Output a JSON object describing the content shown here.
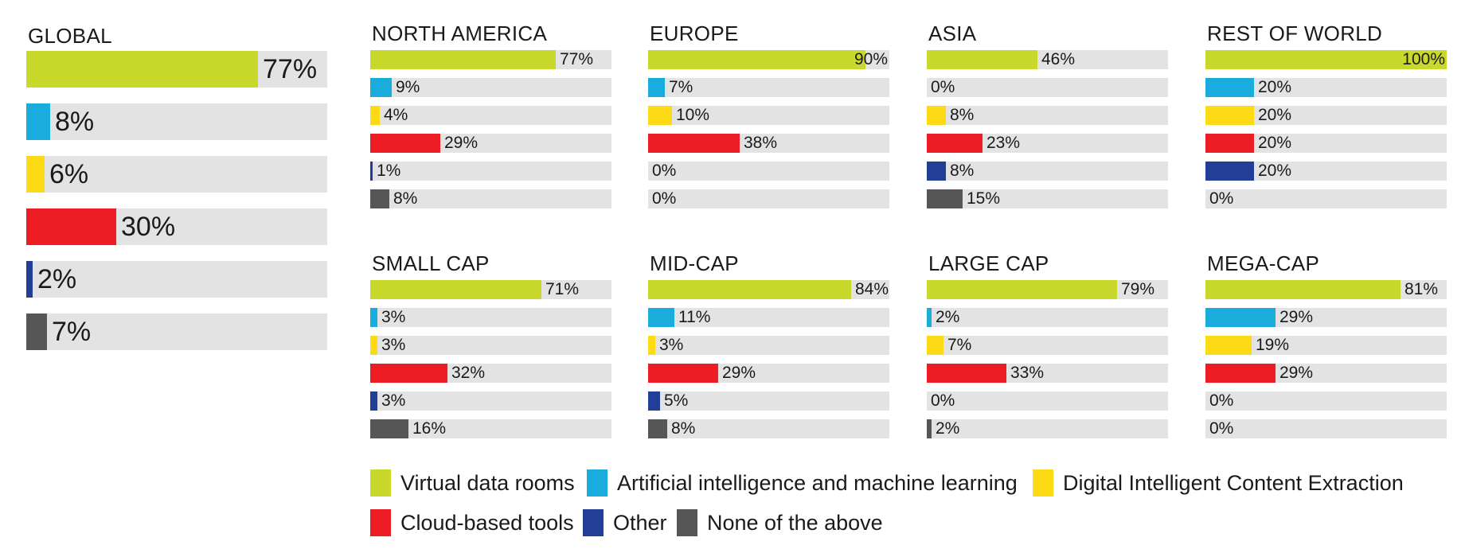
{
  "categories": [
    "Virtual data rooms",
    "Artificial intelligence and machine learning",
    "Digital Intelligent Content Extraction",
    "Cloud-based tools",
    "Other",
    "None of the above"
  ],
  "colors": [
    "#c8d92b",
    "#19acdd",
    "#fcdb16",
    "#ec1d25",
    "#233e97",
    "#565657"
  ],
  "track_color": "#e3e3e4",
  "chart_data": [
    {
      "type": "bar",
      "title": "GLOBAL",
      "values": [
        77,
        8,
        6,
        30,
        2,
        7
      ],
      "xlim": [
        0,
        100
      ],
      "unit": "%"
    },
    {
      "type": "bar",
      "title": "NORTH AMERICA",
      "values": [
        77,
        9,
        4,
        29,
        1,
        8
      ],
      "xlim": [
        0,
        100
      ],
      "unit": "%"
    },
    {
      "type": "bar",
      "title": "EUROPE",
      "values": [
        90,
        7,
        10,
        38,
        0,
        0
      ],
      "xlim": [
        0,
        100
      ],
      "unit": "%"
    },
    {
      "type": "bar",
      "title": "ASIA",
      "values": [
        46,
        0,
        8,
        23,
        8,
        15
      ],
      "xlim": [
        0,
        100
      ],
      "unit": "%"
    },
    {
      "type": "bar",
      "title": "REST OF WORLD",
      "values": [
        100,
        20,
        20,
        20,
        20,
        0
      ],
      "xlim": [
        0,
        100
      ],
      "unit": "%"
    },
    {
      "type": "bar",
      "title": "SMALL CAP",
      "values": [
        71,
        3,
        3,
        32,
        3,
        16
      ],
      "xlim": [
        0,
        100
      ],
      "unit": "%"
    },
    {
      "type": "bar",
      "title": "MID-CAP",
      "values": [
        84,
        11,
        3,
        29,
        5,
        8
      ],
      "xlim": [
        0,
        100
      ],
      "unit": "%"
    },
    {
      "type": "bar",
      "title": "LARGE CAP",
      "values": [
        79,
        2,
        7,
        33,
        0,
        2
      ],
      "xlim": [
        0,
        100
      ],
      "unit": "%"
    },
    {
      "type": "bar",
      "title": "MEGA-CAP",
      "values": [
        81,
        29,
        19,
        29,
        0,
        0
      ],
      "xlim": [
        0,
        100
      ],
      "unit": "%"
    }
  ]
}
